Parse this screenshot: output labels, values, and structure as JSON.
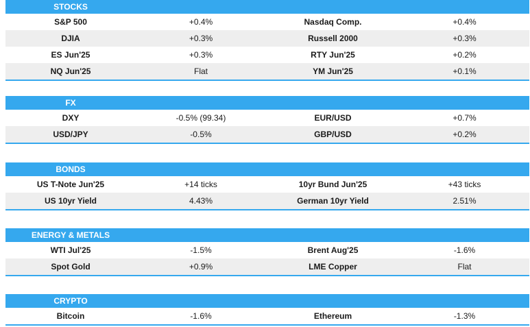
{
  "sections": [
    {
      "title": "STOCKS",
      "rows": [
        [
          "S&P 500",
          "+0.4%",
          "Nasdaq Comp.",
          "+0.4%"
        ],
        [
          "DJIA",
          "+0.3%",
          "Russell 2000",
          "+0.3%"
        ],
        [
          "ES Jun'25",
          "+0.3%",
          "RTY Jun'25",
          "+0.2%"
        ],
        [
          "NQ Jun'25",
          "Flat",
          "YM Jun'25",
          "+0.1%"
        ]
      ]
    },
    {
      "title": "FX",
      "rows": [
        [
          "DXY",
          "-0.5% (99.34)",
          "EUR/USD",
          "+0.7%"
        ],
        [
          "USD/JPY",
          "-0.5%",
          "GBP/USD",
          "+0.2%"
        ]
      ]
    },
    {
      "title": "BONDS",
      "rows": [
        [
          "US T-Note Jun'25",
          "+14 ticks",
          "10yr Bund Jun'25",
          "+43 ticks"
        ],
        [
          "US 10yr Yield",
          "4.43%",
          "German 10yr Yield",
          "2.51%"
        ]
      ]
    },
    {
      "title": "ENERGY & METALS",
      "rows": [
        [
          "WTI Jul'25",
          "-1.5%",
          "Brent Aug'25",
          "-1.6%"
        ],
        [
          "Spot Gold",
          "+0.9%",
          "LME Copper",
          "Flat"
        ]
      ]
    },
    {
      "title": "CRYPTO",
      "rows": [
        [
          "Bitcoin",
          "-1.6%",
          "Ethereum",
          "-1.3%"
        ]
      ]
    }
  ],
  "colors": {
    "header": "#35a8ee",
    "alt_row": "#eeeeee"
  }
}
